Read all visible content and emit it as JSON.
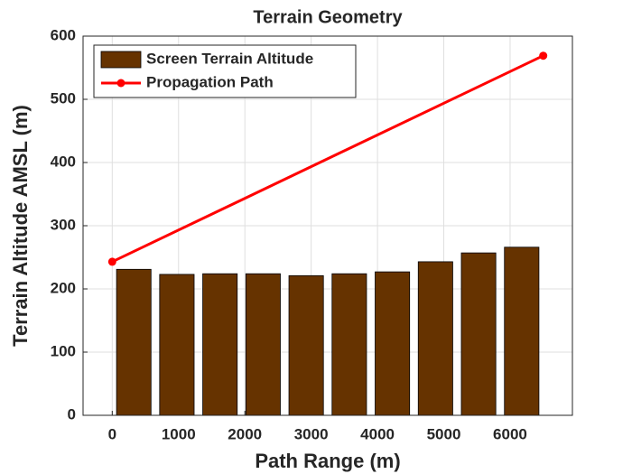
{
  "chart_data": {
    "type": "combo",
    "title": "Terrain Geometry",
    "x_label": "Path Range (m)",
    "y_label": "Terrain Altitude AMSL (m)",
    "xlim": [
      -440,
      6940
    ],
    "ylim": [
      0,
      600
    ],
    "xticks": [
      0,
      1000,
      2000,
      3000,
      4000,
      5000,
      6000
    ],
    "yticks": [
      0,
      100,
      200,
      300,
      400,
      500,
      600
    ],
    "grid": true,
    "legend": "upper-left",
    "series": [
      {
        "name": "Screen Terrain Altitude",
        "type": "bar",
        "color": "#663300",
        "x": [
          325,
          975,
          1625,
          2275,
          2925,
          3575,
          4225,
          4875,
          5525,
          6175
        ],
        "values": [
          231,
          223,
          224,
          224,
          221,
          224,
          227,
          243,
          257,
          266
        ]
      },
      {
        "name": "Propagation Path",
        "type": "line",
        "color": "#ff0000",
        "x": [
          0,
          6500
        ],
        "values": [
          243,
          569
        ]
      }
    ]
  }
}
